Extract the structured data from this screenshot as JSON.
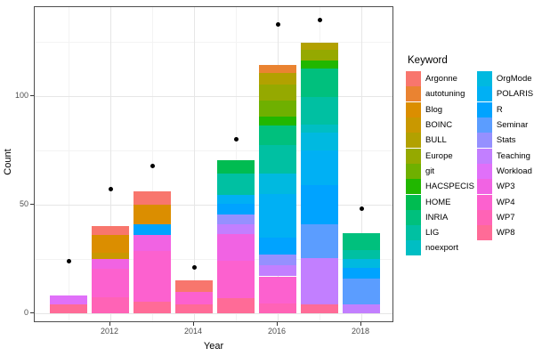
{
  "axes": {
    "x_title": "Year",
    "y_title": "Count"
  },
  "legend": {
    "title": "Keyword",
    "items": [
      {
        "label": "Argonne",
        "color": "#F8766D"
      },
      {
        "label": "autotuning",
        "color": "#EA8331"
      },
      {
        "label": "Blog",
        "color": "#DB8E00"
      },
      {
        "label": "BOINC",
        "color": "#C99800"
      },
      {
        "label": "BULL",
        "color": "#B2A100"
      },
      {
        "label": "Europe",
        "color": "#95A900"
      },
      {
        "label": "git",
        "color": "#6FB000"
      },
      {
        "label": "HACSPECIS",
        "color": "#21B700"
      },
      {
        "label": "HOME",
        "color": "#00BC51"
      },
      {
        "label": "INRIA",
        "color": "#00C07D"
      },
      {
        "label": "LIG",
        "color": "#00C0A2"
      },
      {
        "label": "noexport",
        "color": "#00BEC3"
      },
      {
        "label": "OrgMode",
        "color": "#00B9E0"
      },
      {
        "label": "POLARIS",
        "color": "#00B0F4"
      },
      {
        "label": "R",
        "color": "#00A3FF"
      },
      {
        "label": "Seminar",
        "color": "#5B9DFF"
      },
      {
        "label": "Stats",
        "color": "#9590FF"
      },
      {
        "label": "Teaching",
        "color": "#C27FFF"
      },
      {
        "label": "Workload",
        "color": "#E070F9"
      },
      {
        "label": "WP3",
        "color": "#F163E3"
      },
      {
        "label": "WP4",
        "color": "#FC61CF"
      },
      {
        "label": "WP7",
        "color": "#FF63B6"
      },
      {
        "label": "WP8",
        "color": "#FF6B97"
      }
    ],
    "column_split": 12
  },
  "chart_data": {
    "type": "bar",
    "subtype": "stacked-bars-with-scatter-points",
    "title": "",
    "xlabel": "Year",
    "ylabel": "Count",
    "ylim": [
      0,
      141
    ],
    "y_ticks": [
      0,
      50,
      100
    ],
    "y_minor_ticks": [
      25,
      75,
      125
    ],
    "x_ticks": [
      2012,
      2014,
      2016,
      2018
    ],
    "x_minor_ticks": [
      2011,
      2013,
      2015,
      2017
    ],
    "grid": true,
    "legend_position": "right",
    "categories": [
      2011,
      2012,
      2013,
      2014,
      2015,
      2016,
      2017,
      2018
    ],
    "bar_totals": [
      8,
      40,
      56,
      15,
      70.5,
      114.5,
      124.5,
      37
    ],
    "bars": [
      {
        "year": 2011,
        "segments": [
          {
            "keyword": "Workload",
            "value": 4
          },
          {
            "keyword": "WP8",
            "value": 4
          }
        ]
      },
      {
        "year": 2012,
        "segments": [
          {
            "keyword": "Argonne",
            "value": 4
          },
          {
            "keyword": "Blog",
            "value": 8
          },
          {
            "keyword": "BOINC",
            "value": 3
          },
          {
            "keyword": "WP3",
            "value": 4.5
          },
          {
            "keyword": "WP4",
            "value": 13
          },
          {
            "keyword": "WP7",
            "value": 7.5
          }
        ]
      },
      {
        "year": 2013,
        "segments": [
          {
            "keyword": "Argonne",
            "value": 6
          },
          {
            "keyword": "Blog",
            "value": 9
          },
          {
            "keyword": "R",
            "value": 5
          },
          {
            "keyword": "WP3",
            "value": 7.5
          },
          {
            "keyword": "WP4",
            "value": 23
          },
          {
            "keyword": "WP8",
            "value": 5.5
          }
        ]
      },
      {
        "year": 2014,
        "segments": [
          {
            "keyword": "Argonne",
            "value": 5
          },
          {
            "keyword": "WP4",
            "value": 6
          },
          {
            "keyword": "WP8",
            "value": 4
          }
        ]
      },
      {
        "year": 2015,
        "segments": [
          {
            "keyword": "HOME",
            "value": 6
          },
          {
            "keyword": "LIG",
            "value": 10
          },
          {
            "keyword": "POLARIS",
            "value": 4
          },
          {
            "keyword": "R",
            "value": 5
          },
          {
            "keyword": "Stats",
            "value": 4.5
          },
          {
            "keyword": "Teaching",
            "value": 4.5
          },
          {
            "keyword": "WP3",
            "value": 12.5
          },
          {
            "keyword": "WP4",
            "value": 17
          },
          {
            "keyword": "WP8",
            "value": 7
          }
        ]
      },
      {
        "year": 2016,
        "segments": [
          {
            "keyword": "autotuning",
            "value": 4
          },
          {
            "keyword": "BULL",
            "value": 5
          },
          {
            "keyword": "Europe",
            "value": 7.5
          },
          {
            "keyword": "git",
            "value": 7.5
          },
          {
            "keyword": "HACSPECIS",
            "value": 4
          },
          {
            "keyword": "INRIA",
            "value": 9
          },
          {
            "keyword": "LIG",
            "value": 13
          },
          {
            "keyword": "OrgMode",
            "value": 9.5
          },
          {
            "keyword": "POLARIS",
            "value": 20
          },
          {
            "keyword": "R",
            "value": 8
          },
          {
            "keyword": "Stats",
            "value": 5
          },
          {
            "keyword": "Teaching",
            "value": 5
          },
          {
            "keyword": "WP4",
            "value": 12.5
          },
          {
            "keyword": "WP7",
            "value": 4.5
          }
        ]
      },
      {
        "year": 2017,
        "segments": [
          {
            "keyword": "BULL",
            "value": 3
          },
          {
            "keyword": "Europe",
            "value": 5
          },
          {
            "keyword": "HACSPECIS",
            "value": 4
          },
          {
            "keyword": "INRIA",
            "value": 13
          },
          {
            "keyword": "LIG",
            "value": 12.5
          },
          {
            "keyword": "noexport",
            "value": 4
          },
          {
            "keyword": "OrgMode",
            "value": 8
          },
          {
            "keyword": "POLARIS",
            "value": 16
          },
          {
            "keyword": "R",
            "value": 18
          },
          {
            "keyword": "Seminar",
            "value": 15.5
          },
          {
            "keyword": "Teaching",
            "value": 21.5
          },
          {
            "keyword": "WP8",
            "value": 4
          }
        ]
      },
      {
        "year": 2018,
        "segments": [
          {
            "keyword": "INRIA",
            "value": 8
          },
          {
            "keyword": "LIG",
            "value": 4
          },
          {
            "keyword": "OrgMode",
            "value": 4
          },
          {
            "keyword": "R",
            "value": 5
          },
          {
            "keyword": "Seminar",
            "value": 12
          },
          {
            "keyword": "Teaching",
            "value": 4
          }
        ]
      }
    ],
    "points": {
      "name": "yearly-dot-values",
      "marker": "filled-circle",
      "color": "#000000",
      "x": [
        2011,
        2012,
        2013,
        2014,
        2015,
        2016,
        2017,
        2018
      ],
      "values": [
        24,
        57,
        68,
        21,
        80,
        133,
        135,
        48
      ]
    }
  }
}
